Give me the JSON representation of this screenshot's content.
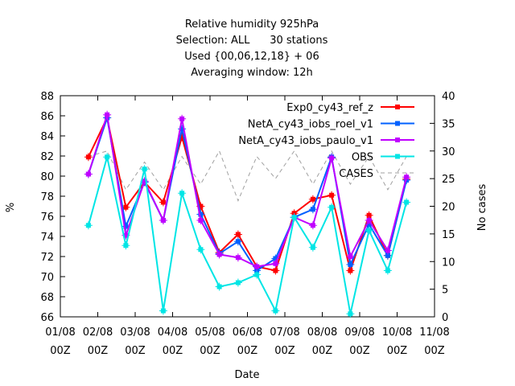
{
  "chart_data": {
    "type": "line",
    "title_lines": [
      "Relative humidity 925hPa",
      "Selection: ALL      30 stations",
      "Used {00,06,12,18} + 06",
      "Averaging window: 12h"
    ],
    "xlabel": "Date",
    "ylabel": "%",
    "y2label": "No cases",
    "ylim": [
      66,
      88
    ],
    "yticks": [
      66,
      68,
      70,
      72,
      74,
      76,
      78,
      80,
      82,
      84,
      86,
      88
    ],
    "y2lim": [
      0,
      40
    ],
    "y2ticks": [
      0,
      5,
      10,
      15,
      20,
      25,
      30,
      35,
      40
    ],
    "xlim": [
      0,
      10
    ],
    "xticks": [
      {
        "x": 0,
        "line1": "01/08",
        "line2": "00Z"
      },
      {
        "x": 1,
        "line1": "02/08",
        "line2": "00Z"
      },
      {
        "x": 2,
        "line1": "03/08",
        "line2": "00Z"
      },
      {
        "x": 3,
        "line1": "04/08",
        "line2": "00Z"
      },
      {
        "x": 4,
        "line1": "05/08",
        "line2": "00Z"
      },
      {
        "x": 5,
        "line1": "06/08",
        "line2": "00Z"
      },
      {
        "x": 6,
        "line1": "07/08",
        "line2": "00Z"
      },
      {
        "x": 7,
        "line1": "08/08",
        "line2": "00Z"
      },
      {
        "x": 8,
        "line1": "09/08",
        "line2": "00Z"
      },
      {
        "x": 9,
        "line1": "10/08",
        "line2": "00Z"
      },
      {
        "x": 10,
        "line1": "11/08",
        "line2": "00Z"
      }
    ],
    "x": [
      0.75,
      1.25,
      1.75,
      2.25,
      2.75,
      3.25,
      3.75,
      4.25,
      4.75,
      5.25,
      5.75,
      6.25,
      6.75,
      7.25,
      7.75,
      8.25,
      8.75,
      9.25
    ],
    "series": [
      {
        "name": "Exp0_cy43_ref_z",
        "color": "#ff0000",
        "marker": "square",
        "values": [
          81.9,
          85.8,
          76.9,
          79.4,
          77.4,
          83.9,
          77.0,
          72.4,
          74.2,
          71.0,
          70.6,
          76.3,
          77.7,
          78.1,
          70.6,
          76.1,
          72.1,
          79.7
        ]
      },
      {
        "name": "NetA_cy43_iobs_roel_v1",
        "color": "#0060ff",
        "marker": "square",
        "values": [
          80.2,
          85.8,
          75.0,
          79.4,
          75.6,
          84.7,
          76.2,
          72.3,
          73.5,
          70.6,
          71.8,
          75.9,
          76.7,
          81.9,
          71.2,
          75.2,
          72.1,
          79.6
        ]
      },
      {
        "name": "NetA_cy43_iobs_paulo_v1",
        "color": "#c000ff",
        "marker": "square",
        "values": [
          80.2,
          86.1,
          74.1,
          79.5,
          75.6,
          85.7,
          75.6,
          72.2,
          71.9,
          71.0,
          71.3,
          75.9,
          75.1,
          81.8,
          72.0,
          75.6,
          72.6,
          79.9
        ]
      },
      {
        "name": "OBS",
        "color": "#00e5e5",
        "marker": "square",
        "values": [
          75.1,
          81.9,
          73.1,
          80.7,
          66.6,
          78.3,
          72.7,
          69.0,
          69.4,
          70.2,
          66.6,
          75.9,
          72.9,
          76.9,
          66.3,
          74.6,
          70.6,
          77.4
        ]
      },
      {
        "name": "CASES",
        "color": "#a0a0a0",
        "axis": "y2",
        "dash": true,
        "values": [
          29,
          30,
          23,
          28,
          23,
          29,
          24,
          30,
          21,
          29,
          25,
          30,
          24,
          30,
          24,
          29,
          23,
          29
        ]
      }
    ]
  }
}
